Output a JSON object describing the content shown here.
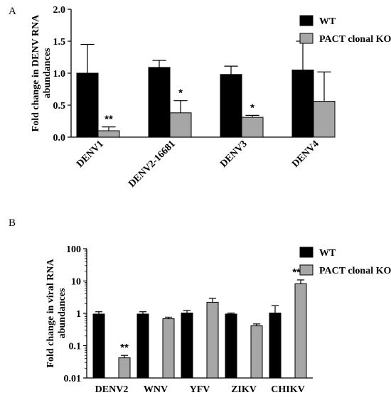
{
  "panels": [
    {
      "letter": "A",
      "chart_data": {
        "type": "bar",
        "ylabel": "Fold change in DENV RNA\nabundances",
        "yscale": "linear",
        "ylim": [
          0,
          2.0
        ],
        "yticks": [
          "0.0",
          "0.5",
          "1.0",
          "1.5",
          "2.0"
        ],
        "categories": [
          "DENV1",
          "DENV2-16681",
          "DENV3",
          "DENV4"
        ],
        "series": [
          {
            "name": "WT",
            "color": "#000000",
            "values": [
              1.0,
              1.09,
              0.98,
              1.05
            ],
            "errors": [
              0.45,
              0.11,
              0.13,
              0.45
            ]
          },
          {
            "name": "PACT clonal KO",
            "color": "#a6a6a6",
            "values": [
              0.1,
              0.38,
              0.31,
              0.56
            ],
            "errors": [
              0.06,
              0.19,
              0.03,
              0.46
            ]
          }
        ],
        "annotations": [
          "**",
          "*",
          "*",
          ""
        ],
        "legend_position": "right",
        "grid": false
      }
    },
    {
      "letter": "B",
      "chart_data": {
        "type": "bar",
        "ylabel": "Fold change in viral RNA\nabundances",
        "yscale": "log",
        "ylim": [
          0.01,
          100
        ],
        "yticks": [
          "0.01",
          "0.1",
          "1",
          "10",
          "100"
        ],
        "categories": [
          "DENV2",
          "WNV",
          "YFV",
          "ZIKV",
          "CHIKV"
        ],
        "series": [
          {
            "name": "WT",
            "color": "#000000",
            "values": [
              0.95,
              0.95,
              1.02,
              0.95,
              1.02
            ],
            "errors_upper": [
              1.12,
              1.12,
              1.22,
              1.02,
              1.72
            ]
          },
          {
            "name": "PACT clonal KO",
            "color": "#a6a6a6",
            "values": [
              0.042,
              0.68,
              2.2,
              0.41,
              8.2
            ],
            "errors_upper": [
              0.05,
              0.76,
              2.9,
              0.47,
              10.8
            ]
          }
        ],
        "annotations": [
          "**",
          "",
          "",
          "",
          "****"
        ],
        "legend_position": "right",
        "grid": false
      }
    }
  ]
}
